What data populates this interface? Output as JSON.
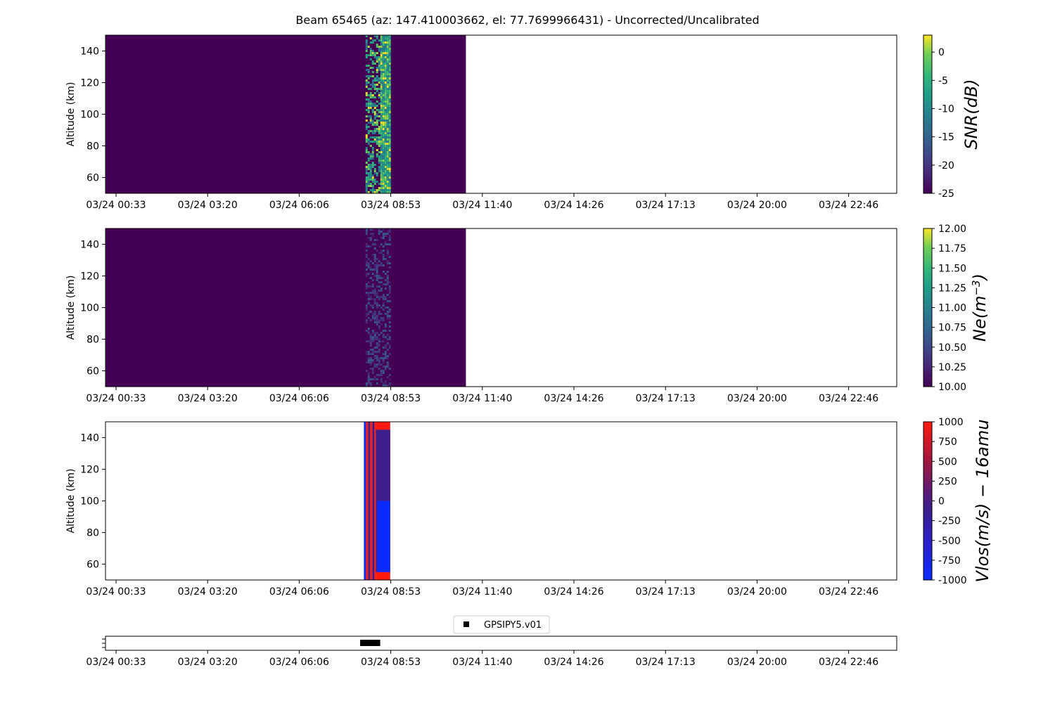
{
  "figure": {
    "title": "Beam 65465 (az: 147.410003662, el: 77.7699966431) - Uncorrected/Uncalibrated"
  },
  "chart_data": [
    {
      "type": "heatmap",
      "name": "SNR panel",
      "ylabel": "Altitude (km)",
      "ylim": [
        50,
        150
      ],
      "yticks": [
        60,
        80,
        100,
        120,
        140
      ],
      "xticks": [
        "03/24 00:33",
        "03/24 03:20",
        "03/24 06:06",
        "03/24 08:53",
        "03/24 11:40",
        "03/24 14:26",
        "03/24 17:13",
        "03/24 20:00",
        "03/24 22:46"
      ],
      "data_range": [
        "03/24 00:13",
        "03/24 11:11"
      ],
      "background_value": -25,
      "colorbar": {
        "label": "SNR(dB)",
        "colormap": "viridis",
        "vmin": -25,
        "vmax": 3,
        "ticks": [
          0,
          -5,
          -10,
          -15,
          -20,
          -25
        ]
      }
    },
    {
      "type": "heatmap",
      "name": "Ne panel",
      "ylabel": "Altitude (km)",
      "ylim": [
        50,
        150
      ],
      "yticks": [
        60,
        80,
        100,
        120,
        140
      ],
      "xticks": [
        "03/24 00:33",
        "03/24 03:20",
        "03/24 06:06",
        "03/24 08:53",
        "03/24 11:40",
        "03/24 14:26",
        "03/24 17:13",
        "03/24 20:00",
        "03/24 22:46"
      ],
      "data_range": [
        "03/24 00:13",
        "03/24 11:11"
      ],
      "background_value": 10.0,
      "colorbar": {
        "label": "Ne(m^-3)",
        "label_base": "Ne(m",
        "label_exp": "−3",
        "colormap": "viridis",
        "vmin": 10.0,
        "vmax": 12.0,
        "ticks": [
          "12.00",
          "11.75",
          "11.50",
          "11.25",
          "11.00",
          "10.75",
          "10.50",
          "10.25",
          "10.00"
        ]
      }
    },
    {
      "type": "heatmap",
      "name": "Vlos panel",
      "ylabel": "Altitude (km)",
      "ylim": [
        50,
        150
      ],
      "yticks": [
        60,
        80,
        100,
        120,
        140
      ],
      "xticks": [
        "03/24 00:33",
        "03/24 03:20",
        "03/24 06:06",
        "03/24 08:53",
        "03/24 11:40",
        "03/24 14:26",
        "03/24 17:13",
        "03/24 20:00",
        "03/24 22:46"
      ],
      "data_range": [
        "03/24 08:05",
        "03/24 08:53"
      ],
      "colorbar": {
        "label": "Vlos(m/s) − 16amu",
        "colormap": "blue-purple-red",
        "vmin": -1000,
        "vmax": 1000,
        "ticks": [
          1000,
          750,
          500,
          250,
          0,
          -250,
          -500,
          -750,
          -1000
        ]
      }
    },
    {
      "type": "scatter",
      "name": "GPS panel",
      "xticks": [
        "03/24 00:33",
        "03/24 03:20",
        "03/24 06:06",
        "03/24 08:53",
        "03/24 11:40",
        "03/24 14:26",
        "03/24 17:13",
        "03/24 20:00",
        "03/24 22:46"
      ],
      "series": [
        {
          "name": "GPSIPY5.v01",
          "marker": "square",
          "color": "#000000",
          "x_range": [
            "03/24 08:02",
            "03/24 08:34"
          ]
        }
      ],
      "legend": "top-center"
    }
  ],
  "colors": {
    "viridis_low": "#440154",
    "viridis_high": "#fde725",
    "vlos_red": "#ff1a0f",
    "vlos_blue": "#0a2bff",
    "vlos_purple": "#3c1e8c"
  }
}
